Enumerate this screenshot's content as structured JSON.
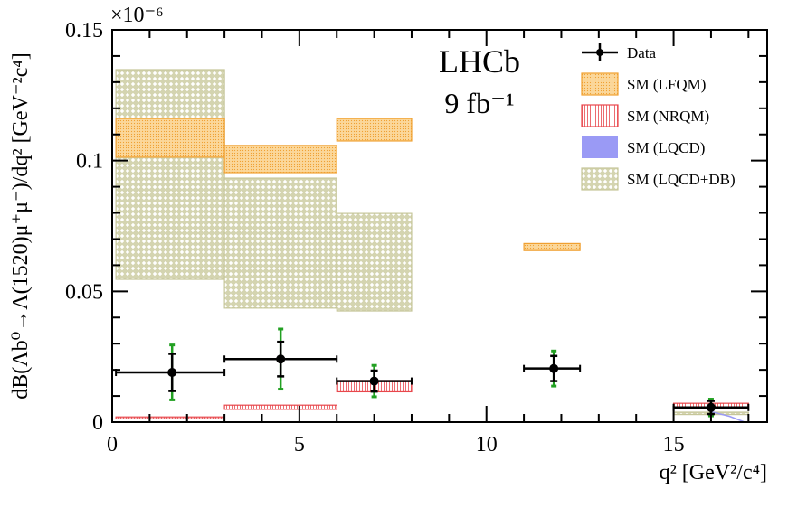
{
  "chart_data": {
    "type": "errorbar+bands",
    "multiplier": "×10⁻⁶",
    "xlabel": "q² [GeV²/c⁴]",
    "ylabel": "dB(Λb⁰→Λ(1520)μ⁺μ⁻)/dq² [GeV⁻²c⁴]",
    "xlim": [
      0,
      17.5
    ],
    "ylim": [
      0,
      0.15
    ],
    "x_ticks": [
      0,
      5,
      10,
      15
    ],
    "x_tick_labels": [
      "0",
      "5",
      "10",
      "15"
    ],
    "y_ticks": [
      0,
      0.05,
      0.1,
      0.15
    ],
    "y_tick_labels": [
      "0",
      "0.05",
      "0.1",
      "0.15"
    ],
    "grid": false,
    "annotations": {
      "experiment": "LHCb",
      "luminosity": "9 fb⁻¹"
    },
    "legend_position": "top-right",
    "legend": [
      {
        "key": "data",
        "label": "Data"
      },
      {
        "key": "lfqm",
        "label": "SM (LFQM)"
      },
      {
        "key": "nrqm",
        "label": "SM (NRQM)"
      },
      {
        "key": "lqcd",
        "label": "SM (LQCD)"
      },
      {
        "key": "lqcddb",
        "label": "SM (LQCD+DB)"
      }
    ],
    "colors": {
      "data": "#000000",
      "data_total_error": "#22a022",
      "lfqm": "#f0a030",
      "nrqm": "#e8474c",
      "lqcd": "#9a9af5",
      "lqcddb": "#c6c69a"
    },
    "data": [
      {
        "x": 1.6,
        "xlo": 0.1,
        "xhi": 3.0,
        "y": 0.019,
        "stat": 0.0071,
        "total": 0.0105
      },
      {
        "x": 4.5,
        "xlo": 3.0,
        "xhi": 6.0,
        "y": 0.0241,
        "stat": 0.0066,
        "total": 0.0115
      },
      {
        "x": 7.0,
        "xlo": 6.0,
        "xhi": 8.0,
        "y": 0.0157,
        "stat": 0.004,
        "total": 0.006
      },
      {
        "x": 11.8,
        "xlo": 11.0,
        "xhi": 12.5,
        "y": 0.0205,
        "stat": 0.0048,
        "total": 0.0067
      },
      {
        "x": 16.0,
        "xlo": 15.0,
        "xhi": 17.0,
        "y": 0.0056,
        "stat": 0.0025,
        "total": 0.0032
      }
    ],
    "bands": {
      "lqcddb": [
        {
          "xlo": 0.1,
          "xhi": 3.0,
          "ylo": 0.0546,
          "yhi": 0.1348
        },
        {
          "xlo": 3.0,
          "xhi": 6.0,
          "ylo": 0.0436,
          "yhi": 0.0933
        },
        {
          "xlo": 6.0,
          "xhi": 8.0,
          "ylo": 0.0425,
          "yhi": 0.0798
        },
        {
          "xlo": 15.0,
          "xhi": 17.0,
          "ylo": 0.0029,
          "yhi": 0.0038
        }
      ],
      "lfqm": [
        {
          "xlo": 0.1,
          "xhi": 3.0,
          "ylo": 0.1013,
          "yhi": 0.1161
        },
        {
          "xlo": 3.0,
          "xhi": 6.0,
          "ylo": 0.0954,
          "yhi": 0.1058
        },
        {
          "xlo": 6.0,
          "xhi": 8.0,
          "ylo": 0.1075,
          "yhi": 0.1161
        },
        {
          "xlo": 11.0,
          "xhi": 12.5,
          "ylo": 0.0656,
          "yhi": 0.0683
        }
      ],
      "nrqm": [
        {
          "xlo": 0.1,
          "xhi": 3.0,
          "ylo": 0.0013,
          "yhi": 0.002
        },
        {
          "xlo": 3.0,
          "xhi": 6.0,
          "ylo": 0.0049,
          "yhi": 0.0065
        },
        {
          "xlo": 6.0,
          "xhi": 8.0,
          "ylo": 0.0116,
          "yhi": 0.0159
        },
        {
          "xlo": 15.0,
          "xhi": 17.0,
          "ylo": 0.0056,
          "yhi": 0.0072
        }
      ],
      "lqcd_curve": [
        [
          16.0,
          0.004
        ],
        [
          16.5,
          0.0022
        ],
        [
          16.9,
          0.0
        ]
      ]
    }
  }
}
